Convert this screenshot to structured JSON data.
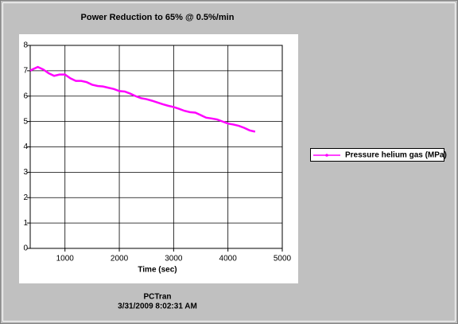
{
  "chart_data": {
    "type": "line",
    "title": "Power Reduction to 65% @ 0.5%/min",
    "x_label": "Time (sec)",
    "footer": [
      "PCTran",
      "3/31/2009 8:02:31 AM"
    ],
    "x": [
      360,
      400,
      500,
      600,
      700,
      800,
      900,
      1000,
      1100,
      1200,
      1300,
      1400,
      1500,
      1600,
      1700,
      1800,
      1900,
      2000,
      2100,
      2200,
      2300,
      2400,
      2500,
      2600,
      2700,
      2800,
      2900,
      3000,
      3100,
      3200,
      3300,
      3400,
      3500,
      3600,
      3700,
      3800,
      3900,
      4000,
      4100,
      4200,
      4300,
      4400,
      4500
    ],
    "series": [
      {
        "name": "Pressure helium gas (MPa)",
        "color": "#ff00ff",
        "values": [
          7.0,
          7.05,
          7.15,
          7.05,
          6.9,
          6.8,
          6.85,
          6.85,
          6.7,
          6.6,
          6.6,
          6.55,
          6.45,
          6.4,
          6.38,
          6.33,
          6.28,
          6.2,
          6.18,
          6.1,
          6.0,
          5.92,
          5.88,
          5.82,
          5.75,
          5.68,
          5.62,
          5.57,
          5.5,
          5.42,
          5.37,
          5.35,
          5.25,
          5.15,
          5.12,
          5.08,
          5.0,
          4.92,
          4.88,
          4.83,
          4.75,
          4.65,
          4.6
        ]
      }
    ],
    "xlim": [
      360,
      5000
    ],
    "ylim": [
      0,
      8
    ],
    "xticks": [
      1000,
      2000,
      3000,
      4000,
      5000
    ],
    "yticks": [
      0,
      1,
      2,
      3,
      4,
      5,
      6,
      7,
      8
    ],
    "grid": true,
    "legend": "right"
  }
}
